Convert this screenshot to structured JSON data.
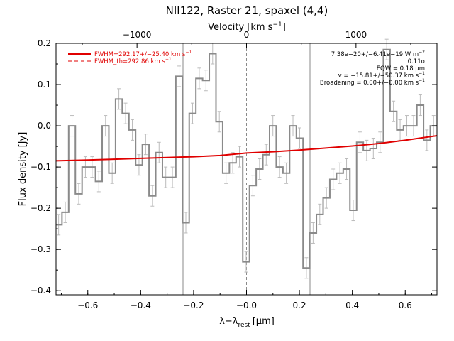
{
  "chart_data": {
    "type": "line",
    "title": "NII122, Raster 21, spaxel (4,4)",
    "xlabel": "λ−λ",
    "xlabel_sub": "rest",
    "xlabel_unit": "[μm]",
    "ylabel": "Flux density [Jy]",
    "top_xlabel": "Velocity [km s",
    "top_xlabel_sup": "−1",
    "top_xlabel_end": "]",
    "xlim": [
      -0.72,
      0.72
    ],
    "ylim": [
      -0.41,
      0.2
    ],
    "xticks": [
      -0.6,
      -0.4,
      -0.2,
      0.0,
      0.2,
      0.4,
      0.6
    ],
    "xtick_labels": [
      "−0.6",
      "−0.4",
      "−0.2",
      "−0.0",
      "0.2",
      "0.4",
      "0.6"
    ],
    "yticks": [
      0.2,
      0.1,
      0.0,
      -0.1,
      -0.2,
      -0.3,
      -0.4
    ],
    "ytick_labels": [
      "0.2",
      "0.1",
      "0.0",
      "−0.1",
      "−0.2",
      "−0.3",
      "−0.4"
    ],
    "top_ticks_um": [
      -0.4139,
      0.0,
      0.4139
    ],
    "top_tick_labels": [
      "−1000",
      "0",
      "1000"
    ],
    "vlines_um": [
      -0.24,
      0.0,
      0.24
    ],
    "legend_placement": "top-left",
    "legend": [
      {
        "label": "FWHM=292.17+/−25.40 km s",
        "sup": "−1",
        "style": "solid",
        "color": "#e00000"
      },
      {
        "label": "FWHM_th=292.86 km s",
        "sup": "−1",
        "style": "dashed",
        "color": "#e00000"
      }
    ],
    "annotations": [
      {
        "text": "7.38e−20+/−6.41e−19 W m",
        "sup": "−2"
      },
      {
        "text": "0.11σ",
        "sup": ""
      },
      {
        "text": "EQW = 0.18 μm",
        "sup": ""
      },
      {
        "text": "v = −15.81+/−50.37 km s",
        "sup": "−1"
      },
      {
        "text": "Broadening = 0.00+/−0.00 km s",
        "sup": "−1"
      }
    ],
    "series": [
      {
        "name": "Flux density",
        "style": "histogram",
        "color": "#8a8a8a",
        "error_color": "#bcbcbc",
        "bin_width": 0.0253,
        "x": [
          -0.7102,
          -0.6849,
          -0.6596,
          -0.6343,
          -0.6089,
          -0.5836,
          -0.5583,
          -0.533,
          -0.5077,
          -0.4824,
          -0.4571,
          -0.4318,
          -0.4064,
          -0.3811,
          -0.3558,
          -0.3305,
          -0.3052,
          -0.2799,
          -0.2546,
          -0.2293,
          -0.2039,
          -0.1786,
          -0.1533,
          -0.128,
          -0.1027,
          -0.0774,
          -0.0521,
          -0.0268,
          -0.0014,
          0.0239,
          0.0492,
          0.0745,
          0.0998,
          0.1251,
          0.1504,
          0.1757,
          0.2011,
          0.2264,
          0.2517,
          0.277,
          0.3023,
          0.3276,
          0.3529,
          0.3782,
          0.4036,
          0.4289,
          0.4542,
          0.4795,
          0.5048,
          0.5301,
          0.5554,
          0.5807,
          0.6061,
          0.6314,
          0.6567,
          0.682,
          0.7073
        ],
        "y": [
          -0.24,
          -0.21,
          0.0,
          -0.165,
          -0.1,
          -0.1,
          -0.135,
          -0.0,
          -0.115,
          0.065,
          0.03,
          -0.01,
          -0.095,
          -0.045,
          -0.17,
          -0.065,
          -0.125,
          -0.125,
          0.12,
          -0.235,
          0.03,
          0.115,
          0.11,
          0.175,
          0.01,
          -0.115,
          -0.09,
          -0.075,
          -0.33,
          -0.145,
          -0.105,
          -0.07,
          0.0,
          -0.1,
          -0.115,
          0.0,
          -0.03,
          -0.345,
          -0.26,
          -0.215,
          -0.175,
          -0.13,
          -0.115,
          -0.105,
          -0.205,
          -0.04,
          -0.06,
          -0.055,
          -0.04,
          0.185,
          0.035,
          -0.01,
          0.0,
          0.0,
          0.05,
          -0.035,
          0.0
        ],
        "err": 0.025
      },
      {
        "name": "FWHM=292.17+/−25.40 km s−1",
        "style": "line",
        "color": "#e00000",
        "x": [
          -0.72,
          -0.6,
          -0.5,
          -0.4,
          -0.3,
          -0.2,
          -0.1,
          0.0,
          0.1,
          0.2,
          0.3,
          0.4,
          0.5,
          0.6,
          0.72
        ],
        "y": [
          -0.085,
          -0.083,
          -0.081,
          -0.079,
          -0.077,
          -0.075,
          -0.072,
          -0.066,
          -0.063,
          -0.059,
          -0.054,
          -0.049,
          -0.043,
          -0.035,
          -0.024
        ]
      }
    ]
  }
}
